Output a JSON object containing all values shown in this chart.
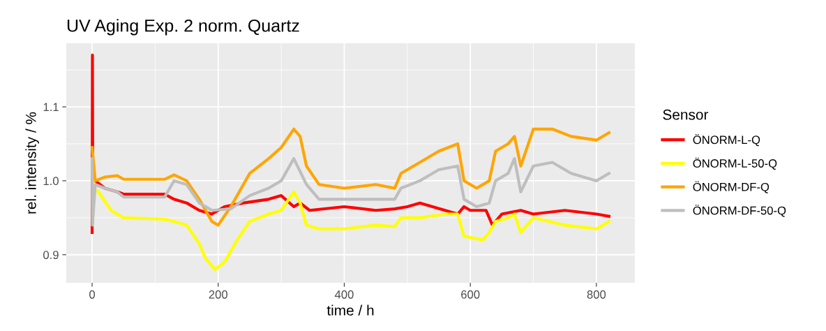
{
  "chart_data": {
    "type": "line",
    "title": "UV Aging Exp. 2 norm. Quartz",
    "xlabel": "time / h",
    "ylabel": "rel. intensity / %",
    "legend_title": "Sensor",
    "legend": "right",
    "grid": true,
    "line_style": "solid",
    "marker": "none",
    "xlim": [
      -41,
      861
    ],
    "xticks": [
      0,
      200,
      400,
      600,
      800
    ],
    "ylim": [
      0.862,
      1.186
    ],
    "yticks": [
      0.9,
      {
        "value": 1.0,
        "label": "1.0"
      },
      1.1
    ],
    "series": [
      {
        "name": "ÖNORM-L-Q",
        "color": "#ff0000",
        "x": [
          0,
          0.5,
          1,
          5,
          20,
          40,
          50,
          115,
          130,
          150,
          170,
          190,
          210,
          240,
          280,
          300,
          320,
          330,
          345,
          400,
          450,
          480,
          500,
          520,
          560,
          580,
          590,
          600,
          625,
          635,
          650,
          680,
          700,
          750,
          800,
          820
        ],
        "values": [
          0.93,
          1.17,
          1.0,
          1.0,
          0.99,
          0.985,
          0.982,
          0.982,
          0.975,
          0.97,
          0.96,
          0.955,
          0.965,
          0.97,
          0.975,
          0.98,
          0.965,
          0.97,
          0.96,
          0.965,
          0.96,
          0.962,
          0.965,
          0.97,
          0.96,
          0.955,
          0.965,
          0.96,
          0.96,
          0.94,
          0.955,
          0.96,
          0.955,
          0.96,
          0.955,
          0.952
        ]
      },
      {
        "name": "ÖNORM-L-50-Q",
        "color": "#ffff00",
        "x": [
          0,
          2,
          10,
          30,
          50,
          115,
          130,
          150,
          170,
          180,
          195,
          210,
          230,
          250,
          280,
          300,
          320,
          330,
          340,
          360,
          400,
          450,
          480,
          490,
          520,
          560,
          580,
          590,
          620,
          630,
          640,
          660,
          670,
          680,
          700,
          750,
          800,
          820
        ],
        "values": [
          1.01,
          0.99,
          0.985,
          0.96,
          0.95,
          0.948,
          0.945,
          0.94,
          0.915,
          0.895,
          0.88,
          0.89,
          0.92,
          0.945,
          0.955,
          0.96,
          0.985,
          0.97,
          0.94,
          0.935,
          0.935,
          0.94,
          0.938,
          0.95,
          0.95,
          0.955,
          0.955,
          0.925,
          0.92,
          0.93,
          0.945,
          0.95,
          0.955,
          0.93,
          0.95,
          0.94,
          0.935,
          0.945
        ]
      },
      {
        "name": "ÖNORM-DF-Q",
        "color": "#ffa500",
        "x": [
          0,
          5,
          20,
          40,
          50,
          115,
          130,
          150,
          170,
          190,
          200,
          220,
          250,
          280,
          300,
          320,
          330,
          340,
          360,
          400,
          450,
          480,
          490,
          520,
          550,
          580,
          590,
          610,
          630,
          640,
          660,
          670,
          680,
          700,
          730,
          760,
          800,
          820
        ],
        "values": [
          1.045,
          1.0,
          1.005,
          1.007,
          1.002,
          1.002,
          1.008,
          1.0,
          0.975,
          0.945,
          0.94,
          0.965,
          1.01,
          1.03,
          1.045,
          1.07,
          1.06,
          1.02,
          0.995,
          0.99,
          0.995,
          0.99,
          1.01,
          1.025,
          1.04,
          1.05,
          1.0,
          0.99,
          1.0,
          1.04,
          1.05,
          1.06,
          1.02,
          1.07,
          1.07,
          1.06,
          1.055,
          1.065
        ]
      },
      {
        "name": "ÖNORM-DF-50-Q",
        "color": "#bebebe",
        "x": [
          0,
          0.5,
          5,
          20,
          40,
          50,
          115,
          130,
          150,
          170,
          190,
          220,
          250,
          280,
          300,
          320,
          340,
          360,
          400,
          450,
          480,
          490,
          520,
          550,
          580,
          590,
          610,
          630,
          640,
          660,
          670,
          680,
          700,
          730,
          760,
          800,
          820
        ],
        "values": [
          1.03,
          0.94,
          0.995,
          0.99,
          0.985,
          0.978,
          0.978,
          1.0,
          0.995,
          0.97,
          0.96,
          0.962,
          0.98,
          0.99,
          1.0,
          1.03,
          0.995,
          0.975,
          0.975,
          0.975,
          0.975,
          0.99,
          1.0,
          1.015,
          1.02,
          0.975,
          0.965,
          0.97,
          1.0,
          1.01,
          1.03,
          0.985,
          1.02,
          1.025,
          1.01,
          1.0,
          1.01
        ]
      }
    ]
  }
}
